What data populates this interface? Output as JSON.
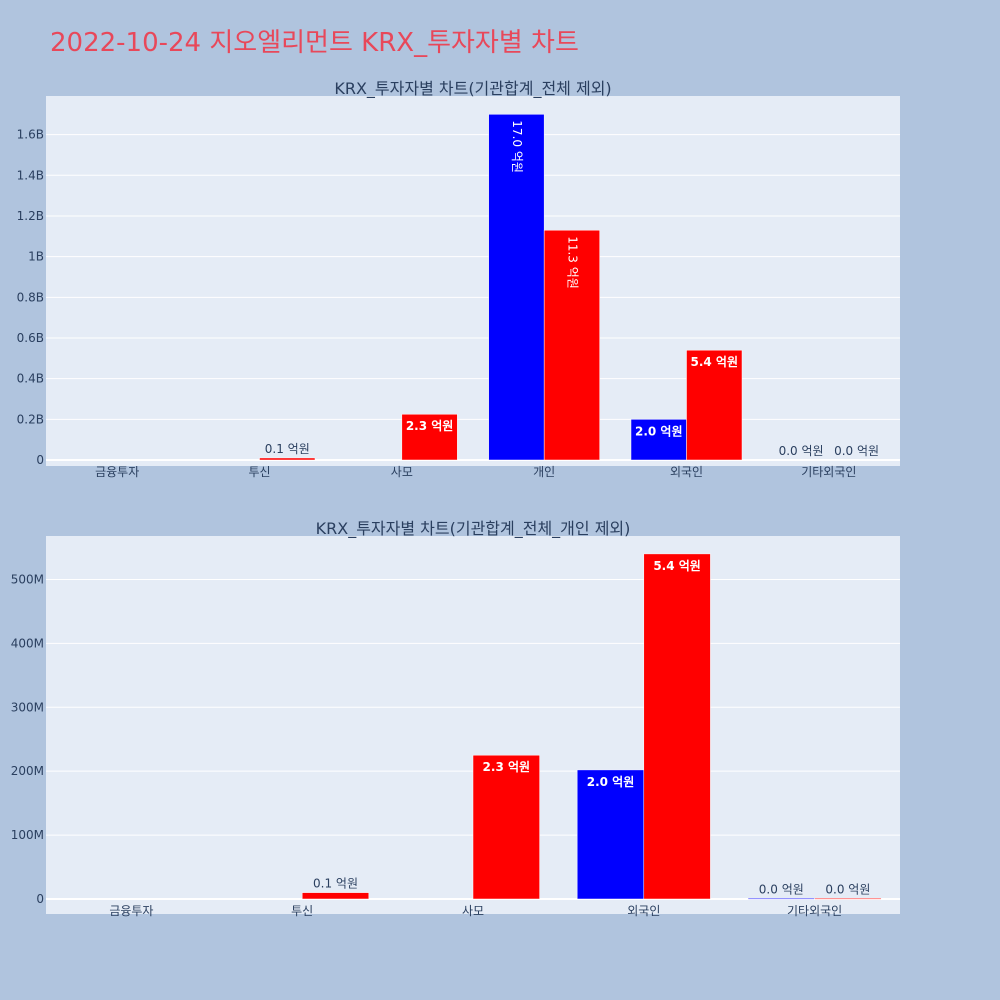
{
  "page": {
    "title": "2022-10-24 지오엘리먼트 KRX_투자자별 차트",
    "colors": {
      "background": "#b0c4de",
      "plot_bg": "#e5ecf6",
      "title": "#e8485a",
      "buy": "#0000ff",
      "sell": "#ff0000",
      "text": "#2a3f5f"
    }
  },
  "chart_data": [
    {
      "type": "bar",
      "title": "KRX_투자자별 차트(기관합계_전체 제외)",
      "categories": [
        "금융투자",
        "투신",
        "사모",
        "개인",
        "외국인",
        "기타외국인"
      ],
      "series": [
        {
          "color": "#0000ff",
          "values": [
            0,
            0,
            0,
            1700000000,
            200000000,
            0
          ],
          "labels": [
            "",
            "",
            "",
            "17.0 억원",
            "2.0 억원",
            "0.0 억원"
          ]
        },
        {
          "color": "#ff0000",
          "values": [
            0,
            10000000,
            225000000,
            1130000000,
            540000000,
            0
          ],
          "labels": [
            "",
            "0.1 억원",
            "2.3 억원",
            "11.3 억원",
            "5.4 억원",
            "0.0 억원"
          ]
        }
      ],
      "ylim": [
        0,
        1790000000
      ],
      "yticks": [
        0,
        200000000,
        400000000,
        600000000,
        800000000,
        1000000000,
        1200000000,
        1400000000,
        1600000000
      ],
      "ytick_labels": [
        "0",
        "0.2B",
        "0.4B",
        "0.6B",
        "0.8B",
        "1B",
        "1.2B",
        "1.4B",
        "1.6B"
      ]
    },
    {
      "type": "bar",
      "title": "KRX_투자자별 차트(기관합계_전체_개인 제외)",
      "categories": [
        "금융투자",
        "투신",
        "사모",
        "외국인",
        "기타외국인"
      ],
      "series": [
        {
          "color": "#0000ff",
          "values": [
            0,
            0,
            0,
            202000000,
            1000000
          ],
          "labels": [
            "",
            "",
            "",
            "2.0 억원",
            "0.0 억원"
          ]
        },
        {
          "color": "#ff0000",
          "values": [
            0,
            10000000,
            225000000,
            540000000,
            1000000
          ],
          "labels": [
            "",
            "0.1 억원",
            "2.3 억원",
            "5.4 억원",
            "0.0 억원"
          ]
        }
      ],
      "ylim": [
        0,
        568000000
      ],
      "yticks": [
        0,
        100000000,
        200000000,
        300000000,
        400000000,
        500000000
      ],
      "ytick_labels": [
        "0",
        "100M",
        "200M",
        "300M",
        "400M",
        "500M"
      ]
    }
  ]
}
